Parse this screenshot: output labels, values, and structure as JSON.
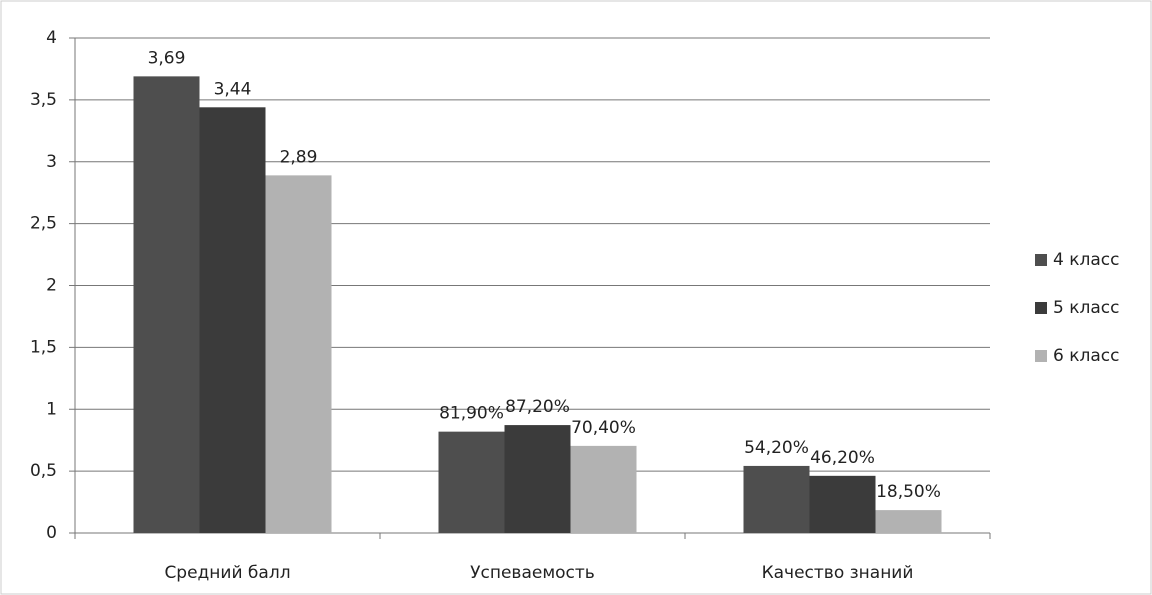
{
  "chart_data": {
    "type": "bar",
    "categories": [
      "Средний  балл",
      "Успеваемость",
      "Качество знаний"
    ],
    "series": [
      {
        "name": "4 класс",
        "color": "#4e4e4e",
        "values": [
          3.69,
          0.819,
          0.542
        ],
        "value_labels": [
          "3,69",
          "81,90%",
          "54,20%"
        ]
      },
      {
        "name": "5 класс",
        "color": "#3b3b3b",
        "values": [
          3.44,
          0.872,
          0.462
        ],
        "value_labels": [
          "3,44",
          "87,20%",
          "46,20%"
        ]
      },
      {
        "name": "6 класс",
        "color": "#b2b2b2",
        "values": [
          2.89,
          0.704,
          0.185
        ],
        "value_labels": [
          "2,89",
          "70,40%",
          "18,50%"
        ]
      }
    ],
    "ylim": [
      0,
      4
    ],
    "yticks": [
      0,
      {
        "value": 0.5,
        "label": "0,5"
      },
      1,
      {
        "value": 1.5,
        "label": "1,5"
      },
      2,
      {
        "value": 2.5,
        "label": "2,5"
      },
      3,
      {
        "value": 3.5,
        "label": "3,5"
      },
      4
    ],
    "grid": true,
    "legend": "right"
  }
}
